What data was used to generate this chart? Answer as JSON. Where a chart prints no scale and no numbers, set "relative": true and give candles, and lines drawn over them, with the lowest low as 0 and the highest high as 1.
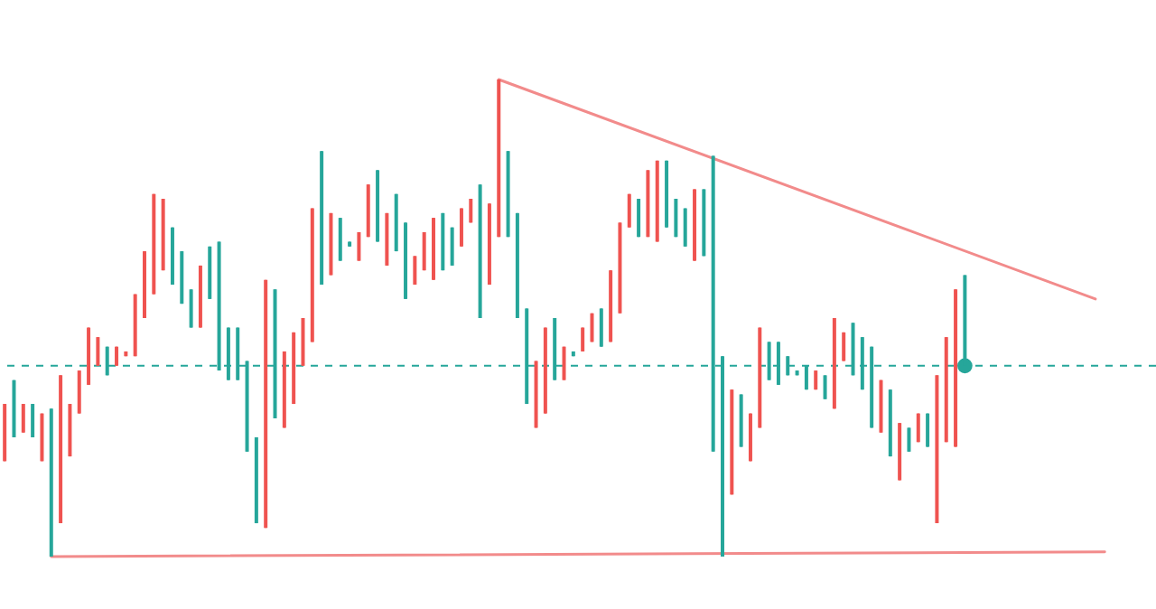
{
  "chart_data": {
    "type": "candlestick",
    "relative": true,
    "tick_labels": false,
    "categories": [
      null,
      null,
      null,
      null,
      null,
      null,
      null,
      null,
      null,
      null,
      null,
      null,
      null,
      null,
      null,
      null,
      null,
      null,
      null,
      null,
      null,
      null,
      null,
      null,
      null,
      null,
      null,
      null,
      null,
      null,
      null,
      null,
      null,
      null,
      null,
      null,
      null,
      null,
      null,
      null,
      null,
      null,
      null,
      null,
      null,
      null,
      null,
      null,
      null,
      null,
      null,
      null,
      null,
      null,
      null,
      null,
      null,
      null,
      null,
      null,
      null,
      null,
      null,
      null,
      null,
      null,
      null,
      null,
      null,
      null,
      null,
      null,
      null,
      null,
      null,
      null,
      null,
      null,
      null,
      null,
      null,
      null,
      null,
      null,
      null,
      null,
      null,
      null,
      null,
      null,
      null,
      null,
      null,
      null,
      null,
      null,
      null,
      null,
      null,
      null,
      null,
      null,
      null,
      null,
      null,
      null,
      null,
      null,
      null,
      null,
      null,
      null,
      null,
      null,
      null,
      null,
      null,
      null,
      null,
      null,
      null,
      null,
      null,
      null
    ],
    "ohlc": [
      [
        0.32,
        0.32,
        0.2,
        0.2
      ],
      [
        0.25,
        0.37,
        0.25,
        0.37
      ],
      [
        0.32,
        0.32,
        0.26,
        0.26
      ],
      [
        0.25,
        0.32,
        0.25,
        0.32
      ],
      [
        0.3,
        0.3,
        0.2,
        0.2
      ],
      [
        0,
        0.31,
        0,
        0.31
      ],
      [
        0.38,
        0.38,
        0.07,
        0.07
      ],
      [
        0.32,
        0.32,
        0.21,
        0.21
      ],
      [
        0.39,
        0.39,
        0.3,
        0.3
      ],
      [
        0.48,
        0.48,
        0.36,
        0.36
      ],
      [
        0.46,
        0.46,
        0.4,
        0.4
      ],
      [
        0.38,
        0.44,
        0.38,
        0.44
      ],
      [
        0.44,
        0.44,
        0.4,
        0.4
      ],
      [
        0.43,
        0.43,
        0.42,
        0.42
      ],
      [
        0.55,
        0.55,
        0.42,
        0.42
      ],
      [
        0.64,
        0.64,
        0.5,
        0.5
      ],
      [
        0.76,
        0.76,
        0.55,
        0.55
      ],
      [
        0.75,
        0.75,
        0.6,
        0.6
      ],
      [
        0.57,
        0.69,
        0.57,
        0.69
      ],
      [
        0.53,
        0.64,
        0.53,
        0.64
      ],
      [
        0.48,
        0.56,
        0.48,
        0.56
      ],
      [
        0.61,
        0.61,
        0.48,
        0.48
      ],
      [
        0.54,
        0.65,
        0.54,
        0.65
      ],
      [
        0.39,
        0.66,
        0.39,
        0.66
      ],
      [
        0.37,
        0.48,
        0.37,
        0.48
      ],
      [
        0.37,
        0.48,
        0.37,
        0.48
      ],
      [
        0.22,
        0.41,
        0.22,
        0.41
      ],
      [
        0.07,
        0.25,
        0.07,
        0.25
      ],
      [
        0.58,
        0.58,
        0.06,
        0.06
      ],
      [
        0.29,
        0.56,
        0.29,
        0.56
      ],
      [
        0.43,
        0.43,
        0.27,
        0.27
      ],
      [
        0.47,
        0.47,
        0.32,
        0.32
      ],
      [
        0.5,
        0.5,
        0.4,
        0.4
      ],
      [
        0.73,
        0.73,
        0.45,
        0.45
      ],
      [
        0.57,
        0.85,
        0.57,
        0.85
      ],
      [
        0.72,
        0.72,
        0.59,
        0.59
      ],
      [
        0.62,
        0.71,
        0.62,
        0.71
      ],
      [
        0.65,
        0.66,
        0.65,
        0.66
      ],
      [
        0.68,
        0.68,
        0.62,
        0.62
      ],
      [
        0.78,
        0.78,
        0.67,
        0.67
      ],
      [
        0.66,
        0.81,
        0.66,
        0.81
      ],
      [
        0.72,
        0.72,
        0.61,
        0.61
      ],
      [
        0.64,
        0.76,
        0.64,
        0.76
      ],
      [
        0.54,
        0.7,
        0.54,
        0.7
      ],
      [
        0.63,
        0.63,
        0.57,
        0.57
      ],
      [
        0.68,
        0.68,
        0.6,
        0.6
      ],
      [
        0.71,
        0.71,
        0.58,
        0.58
      ],
      [
        0.6,
        0.72,
        0.6,
        0.72
      ],
      [
        0.61,
        0.69,
        0.61,
        0.69
      ],
      [
        0.73,
        0.73,
        0.65,
        0.65
      ],
      [
        0.75,
        0.75,
        0.7,
        0.7
      ],
      [
        0.5,
        0.78,
        0.5,
        0.78
      ],
      [
        0.74,
        0.74,
        0.57,
        0.57
      ],
      [
        1,
        1,
        0.67,
        0.67
      ],
      [
        0.67,
        0.85,
        0.67,
        0.85
      ],
      [
        0.5,
        0.72,
        0.5,
        0.72
      ],
      [
        0.32,
        0.52,
        0.32,
        0.52
      ],
      [
        0.41,
        0.41,
        0.27,
        0.27
      ],
      [
        0.48,
        0.48,
        0.3,
        0.3
      ],
      [
        0.37,
        0.5,
        0.37,
        0.5
      ],
      [
        0.44,
        0.44,
        0.37,
        0.37
      ],
      [
        0.42,
        0.43,
        0.42,
        0.43
      ],
      [
        0.48,
        0.48,
        0.43,
        0.43
      ],
      [
        0.51,
        0.51,
        0.45,
        0.45
      ],
      [
        0.44,
        0.52,
        0.44,
        0.52
      ],
      [
        0.6,
        0.6,
        0.45,
        0.45
      ],
      [
        0.7,
        0.7,
        0.51,
        0.51
      ],
      [
        0.76,
        0.76,
        0.69,
        0.69
      ],
      [
        0.67,
        0.75,
        0.67,
        0.75
      ],
      [
        0.81,
        0.81,
        0.67,
        0.67
      ],
      [
        0.83,
        0.83,
        0.66,
        0.66
      ],
      [
        0.69,
        0.83,
        0.69,
        0.83
      ],
      [
        0.67,
        0.75,
        0.67,
        0.75
      ],
      [
        0.65,
        0.73,
        0.65,
        0.73
      ],
      [
        0.77,
        0.77,
        0.62,
        0.62
      ],
      [
        0.63,
        0.77,
        0.63,
        0.77
      ],
      [
        0.22,
        0.84,
        0.22,
        0.84
      ],
      [
        0,
        0.42,
        0,
        0.42
      ],
      [
        0.35,
        0.35,
        0.13,
        0.13
      ],
      [
        0.23,
        0.34,
        0.23,
        0.34
      ],
      [
        0.3,
        0.3,
        0.2,
        0.2
      ],
      [
        0.48,
        0.48,
        0.27,
        0.27
      ],
      [
        0.37,
        0.45,
        0.37,
        0.45
      ],
      [
        0.36,
        0.45,
        0.36,
        0.45
      ],
      [
        0.38,
        0.42,
        0.38,
        0.42
      ],
      [
        0.38,
        0.39,
        0.38,
        0.39
      ],
      [
        0.35,
        0.4,
        0.35,
        0.4
      ],
      [
        0.39,
        0.39,
        0.35,
        0.35
      ],
      [
        0.33,
        0.38,
        0.33,
        0.38
      ],
      [
        0.5,
        0.5,
        0.31,
        0.31
      ],
      [
        0.47,
        0.47,
        0.41,
        0.41
      ],
      [
        0.38,
        0.49,
        0.38,
        0.49
      ],
      [
        0.35,
        0.46,
        0.35,
        0.46
      ],
      [
        0.27,
        0.44,
        0.27,
        0.44
      ],
      [
        0.37,
        0.37,
        0.26,
        0.26
      ],
      [
        0.21,
        0.35,
        0.21,
        0.35
      ],
      [
        0.28,
        0.28,
        0.16,
        0.16
      ],
      [
        0.22,
        0.27,
        0.22,
        0.27
      ],
      [
        0.3,
        0.3,
        0.24,
        0.24
      ],
      [
        0.23,
        0.3,
        0.23,
        0.3
      ],
      [
        0.38,
        0.38,
        0.07,
        0.07
      ],
      [
        0.46,
        0.46,
        0.24,
        0.24
      ],
      [
        0.56,
        0.56,
        0.23,
        0.23
      ],
      [
        0.4,
        0.59,
        0.4,
        0.59
      ],
      null,
      null,
      null,
      null,
      null,
      null,
      null,
      null,
      null,
      null,
      null,
      null,
      null,
      null,
      null,
      null,
      null,
      null,
      null,
      null
    ],
    "colors": [
      "#ef5350",
      "#26a69a",
      "#ef5350",
      "#26a69a",
      "#ef5350",
      "#26a69a",
      "#ef5350",
      "#ef5350",
      "#ef5350",
      "#ef5350",
      "#ef5350",
      "#26a69a",
      "#ef5350",
      "#ef5350",
      "#ef5350",
      "#ef5350",
      "#ef5350",
      "#ef5350",
      "#26a69a",
      "#26a69a",
      "#26a69a",
      "#ef5350",
      "#26a69a",
      "#26a69a",
      "#26a69a",
      "#26a69a",
      "#26a69a",
      "#26a69a",
      "#ef5350",
      "#26a69a",
      "#ef5350",
      "#ef5350",
      "#ef5350",
      "#ef5350",
      "#26a69a",
      "#ef5350",
      "#26a69a",
      "#26a69a",
      "#ef5350",
      "#ef5350",
      "#26a69a",
      "#ef5350",
      "#26a69a",
      "#26a69a",
      "#ef5350",
      "#ef5350",
      "#ef5350",
      "#26a69a",
      "#26a69a",
      "#ef5350",
      "#ef5350",
      "#26a69a",
      "#ef5350",
      "#ef5350",
      "#26a69a",
      "#26a69a",
      "#26a69a",
      "#ef5350",
      "#ef5350",
      "#26a69a",
      "#ef5350",
      "#26a69a",
      "#ef5350",
      "#ef5350",
      "#26a69a",
      "#ef5350",
      "#ef5350",
      "#ef5350",
      "#26a69a",
      "#ef5350",
      "#ef5350",
      "#26a69a",
      "#26a69a",
      "#26a69a",
      "#ef5350",
      "#26a69a",
      "#26a69a",
      "#26a69a",
      "#ef5350",
      "#26a69a",
      "#ef5350",
      "#ef5350",
      "#26a69a",
      "#26a69a",
      "#26a69a",
      "#26a69a",
      "#26a69a",
      "#ef5350",
      "#26a69a",
      "#ef5350",
      "#ef5350",
      "#26a69a",
      "#26a69a",
      "#26a69a",
      "#ef5350",
      "#26a69a",
      "#ef5350",
      "#26a69a",
      "#ef5350",
      "#26a69a",
      "#ef5350",
      "#ef5350",
      "#ef5350",
      "#26a69a",
      null,
      null,
      null,
      null,
      null,
      null,
      null,
      null,
      null,
      null,
      null,
      null,
      null,
      null,
      null,
      null,
      null,
      null,
      null,
      null
    ],
    "ref_lines": [
      {
        "axis": "y",
        "value": 0.4,
        "color": "#26a69a",
        "line_style": "dashed"
      }
    ],
    "series": [
      {
        "type": "line",
        "color": "#f28b8b",
        "values": [
          null,
          null,
          null,
          null,
          null,
          null,
          null,
          null,
          null,
          null,
          null,
          null,
          null,
          null,
          null,
          null,
          null,
          null,
          null,
          null,
          null,
          null,
          null,
          null,
          null,
          null,
          null,
          null,
          null,
          null,
          null,
          null,
          null,
          null,
          null,
          null,
          null,
          null,
          null,
          null,
          null,
          null,
          null,
          null,
          null,
          null,
          null,
          null,
          null,
          null,
          null,
          null,
          null,
          1,
          null,
          null,
          null,
          null,
          null,
          null,
          null,
          null,
          null,
          null,
          null,
          null,
          null,
          null,
          null,
          null,
          null,
          null,
          null,
          null,
          null,
          null,
          null,
          null,
          null,
          null,
          null,
          null,
          null,
          null,
          null,
          null,
          null,
          null,
          null,
          null,
          null,
          null,
          null,
          null,
          null,
          null,
          null,
          null,
          null,
          null,
          null,
          null,
          null,
          null,
          null,
          null,
          null,
          null,
          null,
          null,
          null,
          null,
          null,
          null,
          null,
          null,
          null,
          0.54,
          null,
          null,
          null,
          null,
          null,
          null
        ]
      },
      {
        "type": "line",
        "color": "#f28b8b",
        "values": [
          null,
          null,
          null,
          null,
          null,
          0,
          null,
          null,
          null,
          null,
          null,
          null,
          null,
          null,
          null,
          null,
          null,
          null,
          null,
          null,
          null,
          null,
          null,
          null,
          null,
          null,
          null,
          null,
          null,
          null,
          null,
          null,
          null,
          null,
          null,
          null,
          null,
          null,
          null,
          null,
          null,
          null,
          null,
          null,
          null,
          null,
          null,
          null,
          null,
          null,
          null,
          null,
          null,
          null,
          null,
          null,
          null,
          null,
          null,
          null,
          null,
          null,
          null,
          null,
          null,
          null,
          null,
          null,
          null,
          null,
          null,
          null,
          null,
          null,
          null,
          null,
          null,
          null,
          null,
          null,
          null,
          null,
          null,
          null,
          null,
          null,
          null,
          null,
          null,
          null,
          null,
          null,
          null,
          null,
          null,
          null,
          null,
          null,
          null,
          null,
          null,
          null,
          null,
          null,
          null,
          null,
          null,
          null,
          null,
          null,
          null,
          null,
          null,
          null,
          null,
          null,
          null,
          null,
          0.01,
          null,
          null,
          null,
          null,
          null
        ]
      },
      {
        "type": "scatter",
        "color": "#26a69a",
        "values": [
          null,
          null,
          null,
          null,
          null,
          null,
          null,
          null,
          null,
          null,
          null,
          null,
          null,
          null,
          null,
          null,
          null,
          null,
          null,
          null,
          null,
          null,
          null,
          null,
          null,
          null,
          null,
          null,
          null,
          null,
          null,
          null,
          null,
          null,
          null,
          null,
          null,
          null,
          null,
          null,
          null,
          null,
          null,
          null,
          null,
          null,
          null,
          null,
          null,
          null,
          null,
          null,
          null,
          null,
          null,
          null,
          null,
          null,
          null,
          null,
          null,
          null,
          null,
          null,
          null,
          null,
          null,
          null,
          null,
          null,
          null,
          null,
          null,
          null,
          null,
          null,
          null,
          null,
          null,
          null,
          null,
          null,
          null,
          null,
          null,
          null,
          null,
          null,
          null,
          null,
          null,
          null,
          null,
          null,
          null,
          null,
          null,
          null,
          null,
          null,
          null,
          null,
          null,
          0.4,
          null,
          null,
          null,
          null,
          null,
          null,
          null,
          null,
          null,
          null,
          null,
          null,
          null,
          null,
          null,
          null,
          null,
          null,
          null,
          null
        ]
      }
    ]
  }
}
